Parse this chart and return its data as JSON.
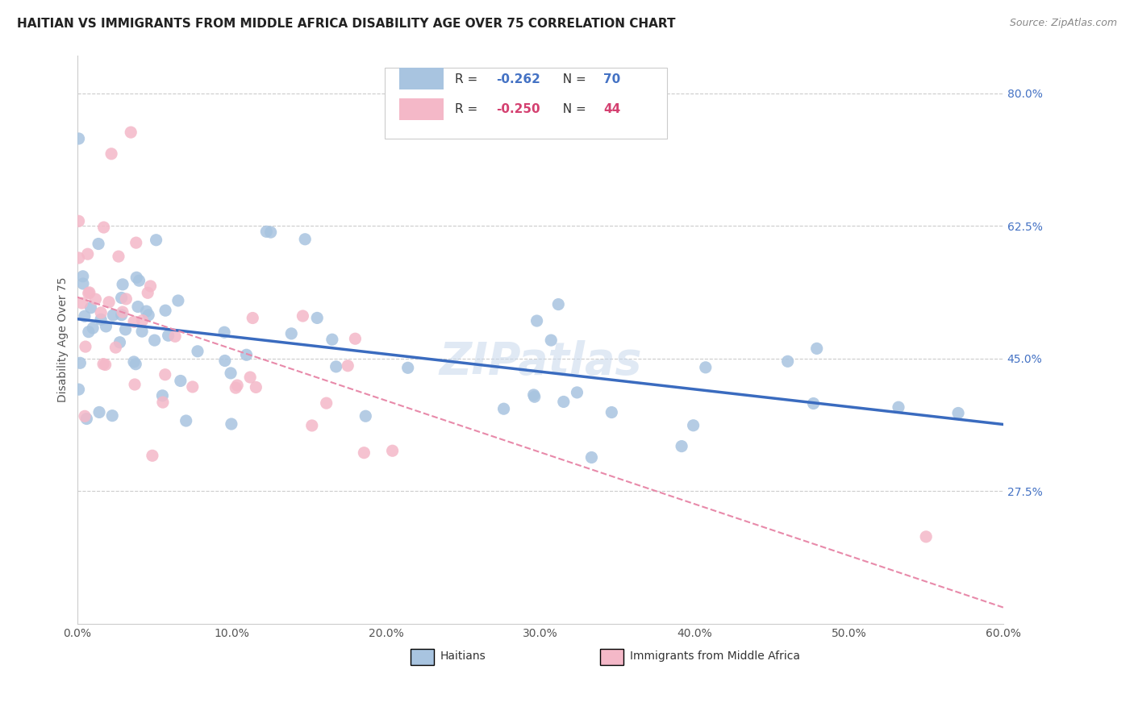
{
  "title": "HAITIAN VS IMMIGRANTS FROM MIDDLE AFRICA DISABILITY AGE OVER 75 CORRELATION CHART",
  "source": "Source: ZipAtlas.com",
  "ylabel": "Disability Age Over 75",
  "xlim": [
    0.0,
    0.6
  ],
  "ylim": [
    0.1,
    0.85
  ],
  "ytick_vals": [
    0.275,
    0.45,
    0.625,
    0.8
  ],
  "ytick_labels": [
    "27.5%",
    "45.0%",
    "62.5%",
    "80.0%"
  ],
  "xtick_vals": [
    0.0,
    0.1,
    0.2,
    0.3,
    0.4,
    0.5,
    0.6
  ],
  "xtick_labels": [
    "0.0%",
    "10.0%",
    "20.0%",
    "30.0%",
    "40.0%",
    "50.0%",
    "60.0%"
  ],
  "grid_color": "#cccccc",
  "background_color": "#ffffff",
  "watermark": "ZIPatlas",
  "blue_scatter_color": "#a8c4e0",
  "pink_scatter_color": "#f4b8c8",
  "blue_line_color": "#3a6bbf",
  "pink_line_color": "#e88aaa",
  "legend_R1": "-0.262",
  "legend_N1": "70",
  "legend_R2": "-0.250",
  "legend_N2": "44",
  "legend_label1": "Haitians",
  "legend_label2": "Immigrants from Middle Africa",
  "n_haitians": 70,
  "n_middle_africa": 44,
  "seed_haitians": 10,
  "seed_middle_africa": 20
}
